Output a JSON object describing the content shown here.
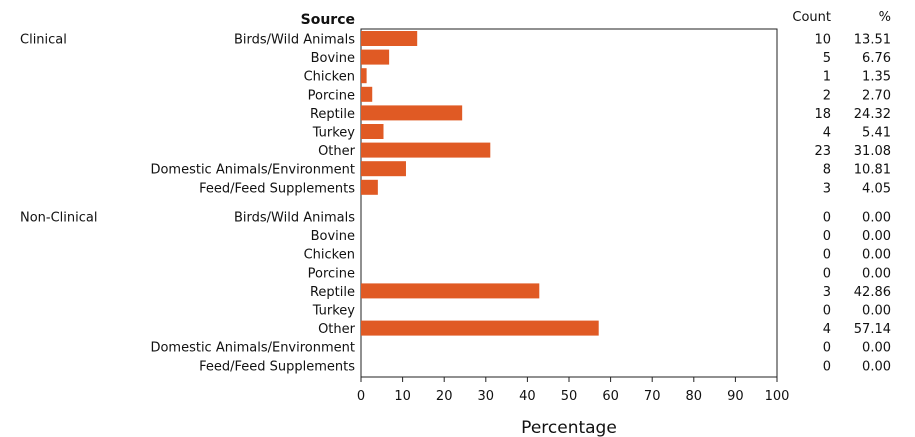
{
  "chart_data": {
    "type": "bar",
    "orientation": "horizontal",
    "category_header": "Source",
    "count_header": "Count",
    "percent_header": "%",
    "xlabel": "Percentage",
    "xlim": [
      0,
      100
    ],
    "xticks": [
      0,
      10,
      20,
      30,
      40,
      50,
      60,
      70,
      80,
      90,
      100
    ],
    "bar_color": "#e05a24",
    "groups": [
      {
        "name": "Clinical",
        "rows": [
          {
            "label": "Birds/Wild Animals",
            "count": "10",
            "percent": "13.51",
            "value": 13.51
          },
          {
            "label": "Bovine",
            "count": "5",
            "percent": "6.76",
            "value": 6.76
          },
          {
            "label": "Chicken",
            "count": "1",
            "percent": "1.35",
            "value": 1.35
          },
          {
            "label": "Porcine",
            "count": "2",
            "percent": "2.70",
            "value": 2.7
          },
          {
            "label": "Reptile",
            "count": "18",
            "percent": "24.32",
            "value": 24.32
          },
          {
            "label": "Turkey",
            "count": "4",
            "percent": "5.41",
            "value": 5.41
          },
          {
            "label": "Other",
            "count": "23",
            "percent": "31.08",
            "value": 31.08
          },
          {
            "label": "Domestic Animals/Environment",
            "count": "8",
            "percent": "10.81",
            "value": 10.81
          },
          {
            "label": "Feed/Feed Supplements",
            "count": "3",
            "percent": "4.05",
            "value": 4.05
          }
        ]
      },
      {
        "name": "Non-Clinical",
        "rows": [
          {
            "label": "Birds/Wild Animals",
            "count": "0",
            "percent": "0.00",
            "value": 0
          },
          {
            "label": "Bovine",
            "count": "0",
            "percent": "0.00",
            "value": 0
          },
          {
            "label": "Chicken",
            "count": "0",
            "percent": "0.00",
            "value": 0
          },
          {
            "label": "Porcine",
            "count": "0",
            "percent": "0.00",
            "value": 0
          },
          {
            "label": "Reptile",
            "count": "3",
            "percent": "42.86",
            "value": 42.86
          },
          {
            "label": "Turkey",
            "count": "0",
            "percent": "0.00",
            "value": 0
          },
          {
            "label": "Other",
            "count": "4",
            "percent": "57.14",
            "value": 57.14
          },
          {
            "label": "Domestic Animals/Environment",
            "count": "0",
            "percent": "0.00",
            "value": 0
          },
          {
            "label": "Feed/Feed Supplements",
            "count": "0",
            "percent": "0.00",
            "value": 0
          }
        ]
      }
    ]
  }
}
